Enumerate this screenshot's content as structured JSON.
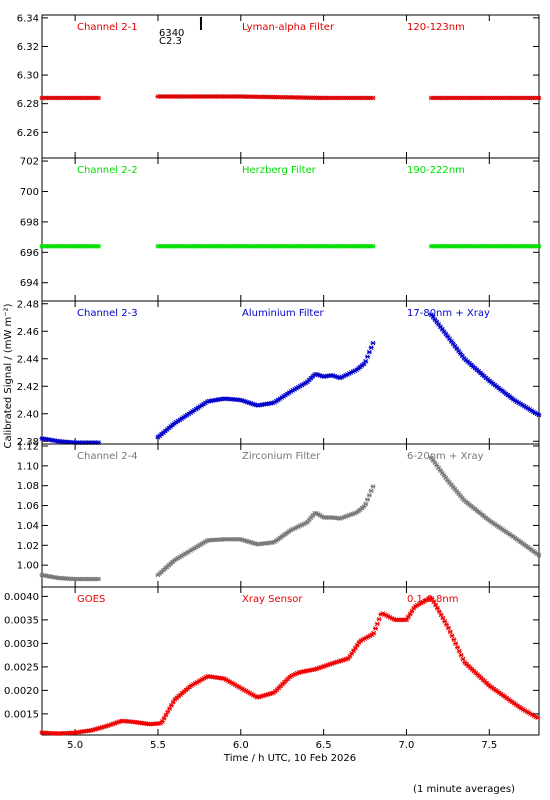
{
  "ylabel": "Calibrated Signal / (mW m⁻²)",
  "xlabel": "Time / h UTC, 10 Feb 2026",
  "footer": "(1 minute averages)",
  "marker": {
    "x": 5.82,
    "label_a": "6340",
    "label_b": "C2.3"
  },
  "chart_data": [
    {
      "type": "scatter",
      "channel": "Channel 2-1",
      "filter": "Lyman-alpha Filter",
      "band": "120-123nm",
      "color": "#dd0000",
      "ylim": [
        6.242,
        6.342
      ],
      "yticks": [
        6.26,
        6.28,
        6.3,
        6.32,
        6.34
      ],
      "ytick_labels": [
        "6.26",
        "6.28",
        "6.30",
        "6.32",
        "6.34"
      ],
      "xlim": [
        4.8,
        7.8
      ],
      "xticks": [
        5.0,
        5.5,
        6.0,
        6.5,
        7.0,
        7.5
      ],
      "xtick_labels": [
        "5.0",
        "5.5",
        "6.0",
        "6.5",
        "7.0",
        "7.5"
      ],
      "segments": [
        [
          4.8,
          5.15
        ],
        [
          5.5,
          6.8
        ],
        [
          7.15,
          7.8
        ]
      ],
      "series": [
        {
          "x": [
            4.8,
            5.15,
            5.5,
            6.0,
            6.5,
            6.8,
            7.15,
            7.8
          ],
          "y": [
            6.284,
            6.284,
            6.285,
            6.285,
            6.284,
            6.284,
            6.284,
            6.284
          ]
        }
      ]
    },
    {
      "type": "scatter",
      "channel": "Channel 2-2",
      "filter": "Herzberg Filter",
      "band": "190-222nm",
      "color": "#00dd00",
      "ylim": [
        692.8,
        702.2
      ],
      "yticks": [
        694,
        696,
        698,
        700,
        702
      ],
      "ytick_labels": [
        "694",
        "696",
        "698",
        "700",
        "702"
      ],
      "xlim": [
        4.8,
        7.8
      ],
      "xticks": [
        5.0,
        5.5,
        6.0,
        6.5,
        7.0,
        7.5
      ],
      "xtick_labels": [
        "5.0",
        "5.5",
        "6.0",
        "6.5",
        "7.0",
        "7.5"
      ],
      "segments": [
        [
          4.8,
          5.15
        ],
        [
          5.5,
          6.8
        ],
        [
          7.15,
          7.8
        ]
      ],
      "series": [
        {
          "x": [
            4.8,
            5.15,
            5.5,
            6.8,
            7.15,
            7.8
          ],
          "y": [
            696.4,
            696.4,
            696.4,
            696.4,
            696.4,
            696.4
          ]
        }
      ]
    },
    {
      "type": "scatter",
      "channel": "Channel 2-3",
      "filter": "Aluminium Filter",
      "band": "17-80nm + Xray",
      "color": "#0000cc",
      "ylim": [
        2.378,
        2.482
      ],
      "yticks": [
        2.38,
        2.4,
        2.42,
        2.44,
        2.46,
        2.48
      ],
      "ytick_labels": [
        "2.38",
        "2.40",
        "2.42",
        "2.44",
        "2.46",
        "2.48"
      ],
      "xlim": [
        4.8,
        7.8
      ],
      "xticks": [
        5.0,
        5.5,
        6.0,
        6.5,
        7.0,
        7.5
      ],
      "xtick_labels": [
        "5.0",
        "5.5",
        "6.0",
        "6.5",
        "7.0",
        "7.5"
      ],
      "segments": [
        [
          4.8,
          5.15
        ],
        [
          5.5,
          6.8
        ],
        [
          7.15,
          7.8
        ]
      ],
      "series": [
        {
          "x": [
            4.8,
            4.9,
            5.0,
            5.15,
            5.5,
            5.6,
            5.7,
            5.8,
            5.9,
            6.0,
            6.1,
            6.2,
            6.3,
            6.4,
            6.45,
            6.5,
            6.55,
            6.6,
            6.7,
            6.75,
            6.8,
            7.15,
            7.25,
            7.35,
            7.5,
            7.65,
            7.8
          ],
          "y": [
            2.382,
            2.38,
            2.379,
            2.379,
            2.383,
            2.393,
            2.401,
            2.409,
            2.411,
            2.41,
            2.406,
            2.408,
            2.416,
            2.423,
            2.429,
            2.427,
            2.428,
            2.426,
            2.432,
            2.437,
            2.452,
            2.472,
            2.456,
            2.44,
            2.424,
            2.41,
            2.399
          ]
        }
      ]
    },
    {
      "type": "scatter",
      "channel": "Channel 2-4",
      "filter": "Zirconium Filter",
      "band": "6-20nm + Xray",
      "color": "#777777",
      "ylim": [
        0.978,
        1.122
      ],
      "yticks": [
        1.0,
        1.02,
        1.04,
        1.06,
        1.08,
        1.1,
        1.12
      ],
      "ytick_labels": [
        "1.00",
        "1.02",
        "1.04",
        "1.06",
        "1.08",
        "1.10",
        "1.12"
      ],
      "xlim": [
        4.8,
        7.8
      ],
      "xticks": [
        5.0,
        5.5,
        6.0,
        6.5,
        7.0,
        7.5
      ],
      "xtick_labels": [
        "5.0",
        "5.5",
        "6.0",
        "6.5",
        "7.0",
        "7.5"
      ],
      "segments": [
        [
          4.8,
          5.15
        ],
        [
          5.5,
          6.8
        ],
        [
          7.15,
          7.8
        ]
      ],
      "series": [
        {
          "x": [
            4.8,
            4.9,
            5.0,
            5.15,
            5.5,
            5.6,
            5.7,
            5.8,
            5.9,
            6.0,
            6.1,
            6.2,
            6.3,
            6.4,
            6.45,
            6.5,
            6.55,
            6.6,
            6.7,
            6.75,
            6.8,
            7.15,
            7.25,
            7.35,
            7.5,
            7.65,
            7.8
          ],
          "y": [
            0.99,
            0.987,
            0.986,
            0.986,
            0.99,
            1.005,
            1.015,
            1.025,
            1.026,
            1.026,
            1.021,
            1.023,
            1.035,
            1.043,
            1.053,
            1.048,
            1.048,
            1.047,
            1.053,
            1.06,
            1.08,
            1.108,
            1.085,
            1.065,
            1.045,
            1.028,
            1.01
          ]
        }
      ]
    },
    {
      "type": "scatter",
      "channel": "GOES",
      "filter": "Xray Sensor",
      "band": "0.1-0.8nm",
      "color": "#ee0000",
      "ylim": [
        0.00105,
        0.0042
      ],
      "yticks": [
        0.0015,
        0.002,
        0.0025,
        0.003,
        0.0035,
        0.004
      ],
      "ytick_labels": [
        "0.0015",
        "0.0020",
        "0.0025",
        "0.0030",
        "0.0035",
        "0.0040"
      ],
      "xlim": [
        4.8,
        7.8
      ],
      "xticks": [
        5.0,
        5.5,
        6.0,
        6.5,
        7.0,
        7.5
      ],
      "xtick_labels": [
        "5.0",
        "5.5",
        "6.0",
        "6.5",
        "7.0",
        "7.5"
      ],
      "segments": [
        [
          4.8,
          7.8
        ]
      ],
      "series": [
        {
          "x": [
            4.8,
            4.9,
            5.0,
            5.1,
            5.2,
            5.28,
            5.35,
            5.45,
            5.52,
            5.6,
            5.7,
            5.8,
            5.9,
            6.0,
            6.1,
            6.2,
            6.3,
            6.35,
            6.45,
            6.55,
            6.65,
            6.72,
            6.8,
            6.85,
            6.93,
            7.0,
            7.05,
            7.15,
            7.25,
            7.35,
            7.5,
            7.6,
            7.7,
            7.8
          ],
          "y": [
            0.0011,
            0.00108,
            0.0011,
            0.00115,
            0.00125,
            0.00135,
            0.00133,
            0.00128,
            0.0013,
            0.0018,
            0.0021,
            0.0023,
            0.00225,
            0.00205,
            0.00185,
            0.00195,
            0.0023,
            0.00238,
            0.00245,
            0.00257,
            0.00268,
            0.00305,
            0.0032,
            0.00365,
            0.0035,
            0.0035,
            0.00378,
            0.00398,
            0.00335,
            0.0026,
            0.0021,
            0.00185,
            0.0016,
            0.0014
          ]
        }
      ]
    }
  ]
}
